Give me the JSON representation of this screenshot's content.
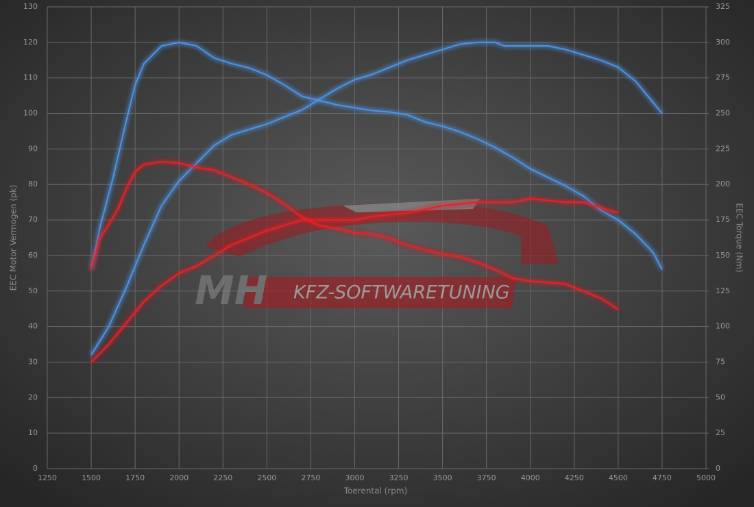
{
  "chart_data": {
    "type": "line",
    "xlabel": "Toerental (rpm)",
    "ylabel": "EEC Motor Vermogen (pk)",
    "y2label": "EEC Torque (Nm)",
    "logo": {
      "left": "MH",
      "right": "KFZ-SOFTWARETUNING"
    },
    "xlim": [
      1250,
      5000
    ],
    "xticks": [
      1250,
      1500,
      1750,
      2000,
      2250,
      2500,
      2750,
      3000,
      3250,
      3500,
      3750,
      4000,
      4250,
      4500,
      4750,
      5000
    ],
    "ylim": [
      0,
      130
    ],
    "yticks": [
      0,
      10,
      20,
      30,
      40,
      50,
      60,
      70,
      80,
      90,
      100,
      110,
      120,
      130
    ],
    "y2lim": [
      0,
      325
    ],
    "y2ticks": [
      0,
      25,
      50,
      75,
      100,
      125,
      150,
      175,
      200,
      225,
      250,
      275,
      300,
      325
    ],
    "grid": true,
    "series": [
      {
        "color": "#4d93e6",
        "axis": "y",
        "x": [
          1500,
          1600,
          1700,
          1800,
          1900,
          2000,
          2100,
          2200,
          2300,
          2400,
          2500,
          2600,
          2700,
          2800,
          2900,
          3000,
          3100,
          3200,
          3300,
          3400,
          3500,
          3600,
          3700,
          3800,
          3850,
          4000,
          4100,
          4200,
          4300,
          4400,
          4500,
          4600,
          4700,
          4750
        ],
        "values": [
          32,
          40,
          51,
          63,
          74,
          81,
          86,
          91,
          94,
          95.5,
          97,
          99,
          101,
          104,
          107,
          109.5,
          111,
          113,
          115,
          116.5,
          118,
          119.5,
          120,
          120,
          119,
          119,
          119,
          118,
          116.5,
          115,
          113,
          109,
          103,
          100
        ]
      },
      {
        "color": "#4d93e6",
        "axis": "y2",
        "x": [
          1500,
          1550,
          1625,
          1700,
          1750,
          1800,
          1900,
          2000,
          2100,
          2200,
          2300,
          2400,
          2500,
          2600,
          2700,
          2800,
          2900,
          3000,
          3100,
          3200,
          3300,
          3400,
          3500,
          3600,
          3700,
          3800,
          3900,
          4000,
          4100,
          4200,
          4300,
          4400,
          4500,
          4600,
          4700,
          4750
        ],
        "values": [
          140,
          170,
          205,
          245,
          270,
          285,
          297.5,
          300,
          297.5,
          289,
          285,
          282,
          277,
          270,
          262,
          259,
          256,
          254,
          252,
          251,
          249,
          244,
          241,
          237,
          232,
          226,
          219,
          211,
          205,
          199,
          192,
          182,
          175,
          165,
          152,
          140
        ]
      },
      {
        "color": "#e8202a",
        "axis": "y",
        "x": [
          1500,
          1600,
          1700,
          1800,
          1900,
          2000,
          2100,
          2200,
          2300,
          2400,
          2500,
          2600,
          2700,
          2800,
          2900,
          3000,
          3100,
          3200,
          3300,
          3400,
          3500,
          3600,
          3700,
          3800,
          3900,
          4000,
          4100,
          4200,
          4300,
          4400,
          4500
        ],
        "values": [
          30,
          35,
          41,
          47,
          51.5,
          55,
          57,
          60,
          63,
          65,
          67,
          68.5,
          70,
          70,
          70,
          70,
          71,
          71.5,
          72,
          73,
          74,
          74.5,
          75,
          75,
          75,
          76,
          75.5,
          75,
          75,
          73.5,
          72
        ]
      },
      {
        "color": "#e8202a",
        "axis": "y2",
        "x": [
          1500,
          1550,
          1650,
          1700,
          1750,
          1800,
          1900,
          2000,
          2100,
          2200,
          2300,
          2400,
          2500,
          2600,
          2700,
          2800,
          2900,
          3000,
          3100,
          3200,
          3300,
          3400,
          3500,
          3600,
          3700,
          3800,
          3900,
          4000,
          4100,
          4200,
          4300,
          4400,
          4500
        ],
        "values": [
          140,
          162,
          182,
          197,
          209,
          214,
          216,
          215,
          212,
          210,
          205,
          200,
          194,
          186,
          177,
          171,
          169,
          166,
          165,
          162,
          157,
          154,
          151,
          149,
          145,
          140,
          134,
          132,
          131,
          130,
          125,
          120,
          112
        ]
      }
    ]
  }
}
